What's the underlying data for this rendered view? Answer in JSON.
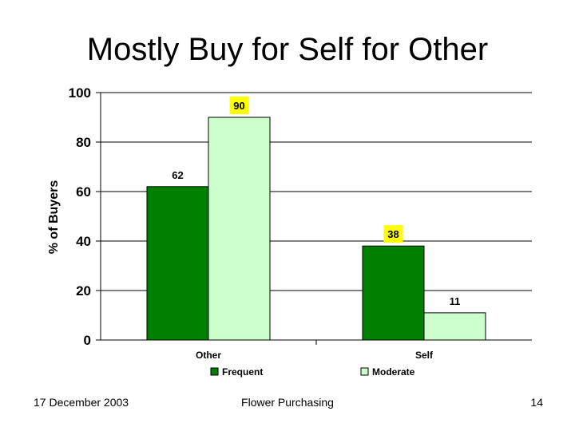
{
  "slide": {
    "title": "Mostly Buy for Self for Other",
    "footer_left": "17 December 2003",
    "footer_center": "Flower Purchasing",
    "footer_right": "14"
  },
  "chart_data": {
    "type": "bar",
    "title": "",
    "xlabel": "",
    "ylabel": "% of Buyers",
    "ylim": [
      0,
      100
    ],
    "yticks": [
      0,
      20,
      40,
      60,
      80,
      100
    ],
    "grid": true,
    "legend_position": "bottom",
    "categories": [
      "Other",
      "Self"
    ],
    "series": [
      {
        "name": "Frequent",
        "values": [
          62,
          38
        ],
        "color": "#008000"
      },
      {
        "name": "Moderate",
        "values": [
          90,
          11
        ],
        "color": "#CCFFCC"
      }
    ],
    "data_labels": [
      [
        "62",
        "38"
      ],
      [
        "90",
        "11"
      ]
    ],
    "highlight_labels": [
      [
        false,
        true
      ],
      [
        true,
        false
      ]
    ],
    "highlight_color": "#FFFF00"
  }
}
